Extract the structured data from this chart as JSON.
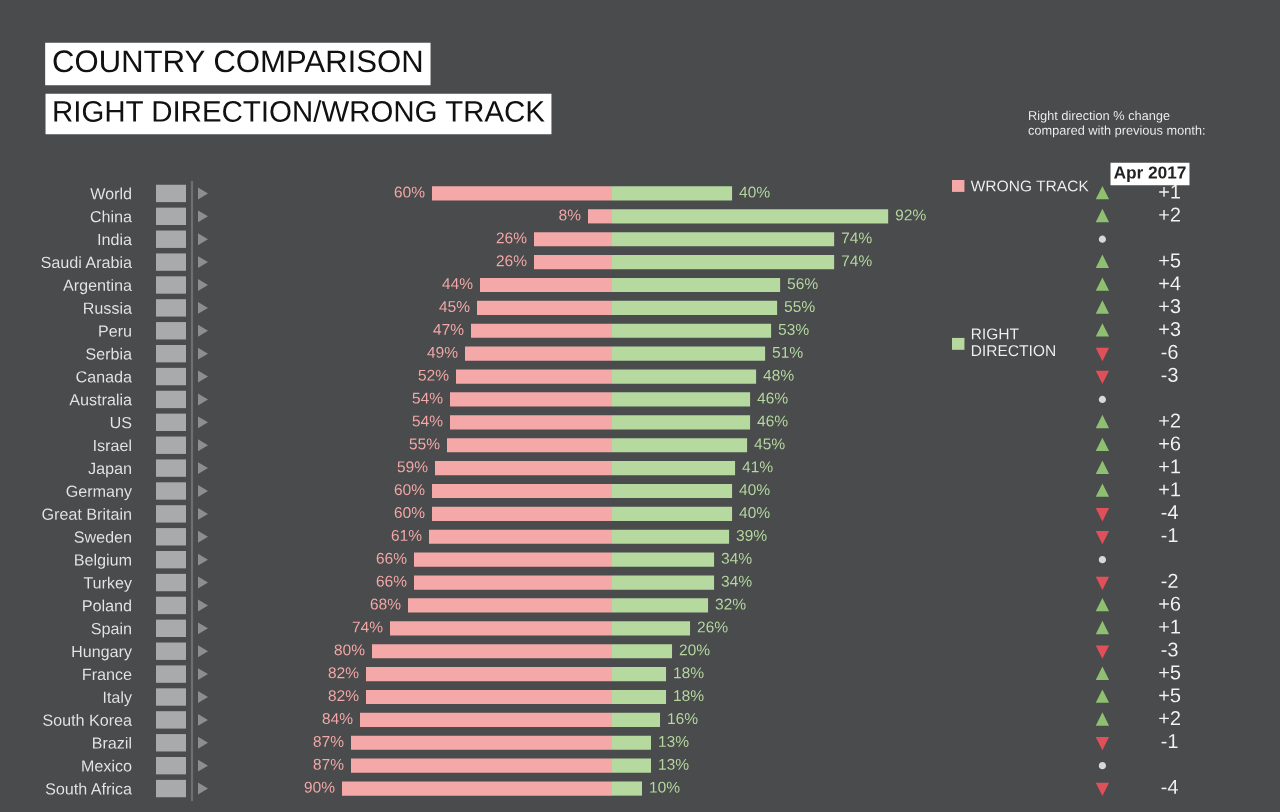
{
  "chart_data": [
    {
      "type": "bar",
      "orientation": "horizontal",
      "title": "COUNTRY COMPARISON",
      "subtitle": "RIGHT DIRECTION/WRONG TRACK",
      "categories": [
        "World",
        "China",
        "India",
        "Saudi Arabia",
        "Argentina",
        "Russia",
        "Peru",
        "Serbia",
        "Canada",
        "Australia",
        "US",
        "Israel",
        "Japan",
        "Germany",
        "Great Britain",
        "Sweden",
        "Belgium",
        "Turkey",
        "Poland",
        "Spain",
        "Hungary",
        "France",
        "Italy",
        "South Korea",
        "Brazil",
        "Mexico",
        "South Africa"
      ],
      "series": [
        {
          "name": "WRONG TRACK",
          "color": "#f4a8a8",
          "values": [
            60,
            8,
            26,
            26,
            44,
            45,
            47,
            49,
            52,
            54,
            54,
            55,
            59,
            60,
            60,
            61,
            66,
            66,
            68,
            74,
            80,
            82,
            82,
            84,
            87,
            87,
            90
          ],
          "value_labels": [
            "60%",
            "8%",
            "26%",
            "26%",
            "44%",
            "45%",
            "47%",
            "49%",
            "52%",
            "54%",
            "54%",
            "55%",
            "59%",
            "60%",
            "60%",
            "61%",
            "66%",
            "66%",
            "68%",
            "74%",
            "80%",
            "82%",
            "82%",
            "84%",
            "87%",
            "87%",
            "90%"
          ]
        }
      ],
      "xlim": [
        140,
        0
      ],
      "tick_labels": "y",
      "legend": "right"
    },
    {
      "type": "bar",
      "orientation": "horizontal",
      "categories": [
        null,
        null,
        null,
        null,
        null,
        null,
        null,
        null,
        null,
        null,
        null,
        null,
        null,
        null,
        null,
        null,
        null,
        null,
        null,
        null,
        null,
        null,
        null,
        null,
        null,
        null,
        null
      ],
      "series": [
        {
          "name": "RIGHT\nDIRECTION",
          "color": "#b6d9a0",
          "values": [
            40,
            92,
            74,
            74,
            56,
            55,
            53,
            51,
            48,
            46,
            46,
            45,
            41,
            40,
            40,
            39,
            34,
            34,
            32,
            26,
            20,
            18,
            18,
            16,
            13,
            13,
            10
          ],
          "value_labels": [
            "40%",
            "92%",
            "74%",
            "74%",
            "56%",
            "55%",
            "53%",
            "51%",
            "48%",
            "46%",
            "46%",
            "45%",
            "41%",
            "40%",
            "40%",
            "39%",
            "34%",
            "34%",
            "32%",
            "26%",
            "20%",
            "18%",
            "18%",
            "16%",
            "13%",
            "13%",
            "10%"
          ]
        }
      ],
      "legend": "right"
    },
    {
      "type": "other",
      "title": "Right direction % change\ncompared with previous month:",
      "subtitle": "Apr 2017",
      "values": [
        1,
        2,
        null,
        5,
        4,
        3,
        3,
        -6,
        -3,
        null,
        2,
        6,
        1,
        1,
        -4,
        -1,
        null,
        -2,
        6,
        1,
        -3,
        5,
        5,
        2,
        -1,
        null,
        -4
      ],
      "value_labels": [
        "+1",
        "+2",
        null,
        "+5",
        "+4",
        "+3",
        "+3",
        "-6",
        "-3",
        null,
        "+2",
        "+6",
        "+1",
        "+1",
        "-4",
        "-1",
        null,
        "-2",
        "+6",
        "+1",
        "-3",
        "+5",
        "+5",
        "+2",
        "-1",
        null,
        "-4"
      ],
      "colors": [
        "#8fbf70",
        "#8fbf70",
        "#d8d8d8",
        "#8fbf70",
        "#8fbf70",
        "#8fbf70",
        "#8fbf70",
        "#e0505a",
        "#e0505a",
        "#d8d8d8",
        "#8fbf70",
        "#8fbf70",
        "#8fbf70",
        "#8fbf70",
        "#e0505a",
        "#e0505a",
        "#d8d8d8",
        "#e0505a",
        "#8fbf70",
        "#8fbf70",
        "#e0505a",
        "#8fbf70",
        "#8fbf70",
        "#8fbf70",
        "#e0505a",
        "#d8d8d8",
        "#e0505a"
      ]
    }
  ]
}
